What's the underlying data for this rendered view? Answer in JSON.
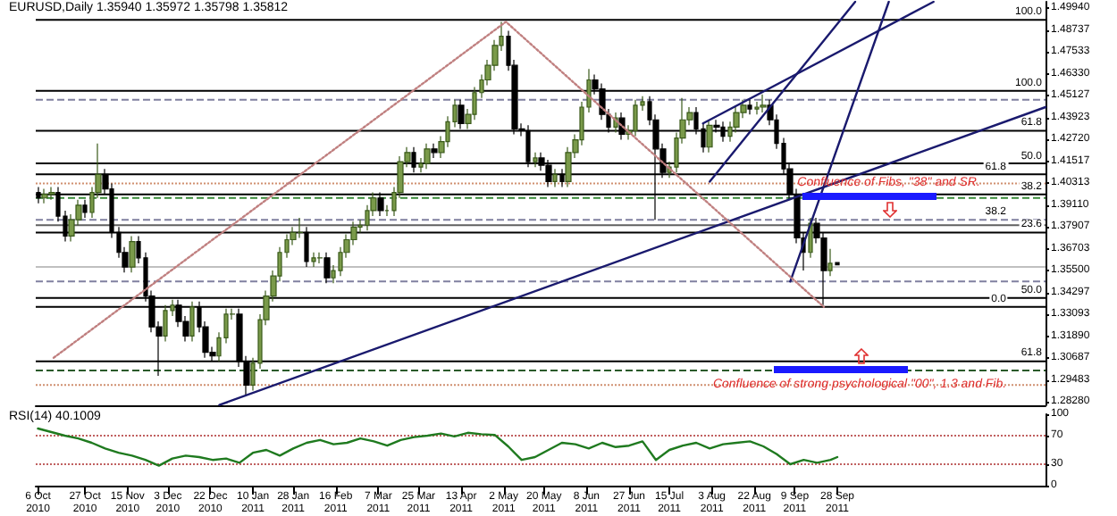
{
  "chart_data": [
    {
      "type": "candlestick",
      "title": "EURUSD,Daily 1.35940 1.35972 1.35798 1.35812",
      "x": [
        "2010-10-06",
        "2010-10-09",
        "2010-10-12",
        "2010-10-15",
        "2010-10-18",
        "2010-10-21",
        "2010-10-24",
        "2010-10-27",
        "2010-10-30",
        "2010-11-02",
        "2010-11-05",
        "2010-11-08",
        "2010-11-11",
        "2010-11-14",
        "2010-11-17",
        "2010-11-20",
        "2010-11-23",
        "2010-11-26",
        "2010-11-29",
        "2010-12-02",
        "2010-12-05",
        "2010-12-08",
        "2010-12-11",
        "2010-12-14",
        "2010-12-17",
        "2010-12-20",
        "2010-12-23",
        "2010-12-26",
        "2010-12-29",
        "2011-01-01",
        "2011-01-04",
        "2011-01-07",
        "2011-01-10",
        "2011-01-13",
        "2011-01-16",
        "2011-01-19",
        "2011-01-22",
        "2011-01-25",
        "2011-01-28",
        "2011-01-31",
        "2011-02-03",
        "2011-02-06",
        "2011-02-09",
        "2011-02-12",
        "2011-02-15",
        "2011-02-18",
        "2011-02-21",
        "2011-02-24",
        "2011-02-27",
        "2011-03-02",
        "2011-03-05",
        "2011-03-08",
        "2011-03-11",
        "2011-03-14",
        "2011-03-17",
        "2011-03-20",
        "2011-03-23",
        "2011-03-26",
        "2011-03-29",
        "2011-04-01",
        "2011-04-04",
        "2011-04-07",
        "2011-04-10",
        "2011-04-13",
        "2011-04-16",
        "2011-04-19",
        "2011-04-22",
        "2011-04-25",
        "2011-04-28",
        "2011-05-01",
        "2011-05-04",
        "2011-05-07",
        "2011-05-10",
        "2011-05-13",
        "2011-05-16",
        "2011-05-19",
        "2011-05-22",
        "2011-05-25",
        "2011-05-28",
        "2011-05-31",
        "2011-06-03",
        "2011-06-06",
        "2011-06-09",
        "2011-06-12",
        "2011-06-15",
        "2011-06-18",
        "2011-06-21",
        "2011-06-24",
        "2011-06-27",
        "2011-06-30",
        "2011-07-03",
        "2011-07-06",
        "2011-07-09",
        "2011-07-12",
        "2011-07-15",
        "2011-07-18",
        "2011-07-21",
        "2011-07-24",
        "2011-07-27",
        "2011-07-30",
        "2011-08-02",
        "2011-08-05",
        "2011-08-08",
        "2011-08-11",
        "2011-08-14",
        "2011-08-17",
        "2011-08-20",
        "2011-08-23",
        "2011-08-26",
        "2011-08-29",
        "2011-09-01",
        "2011-09-04",
        "2011-09-07",
        "2011-09-10",
        "2011-09-13",
        "2011-09-16",
        "2011-09-19",
        "2011-09-22",
        "2011-09-25",
        "2011-09-28"
      ],
      "ohlc": [
        [
          1.398,
          1.401,
          1.392,
          1.395
        ],
        [
          1.395,
          1.4,
          1.392,
          1.397
        ],
        [
          1.397,
          1.401,
          1.394,
          1.398
        ],
        [
          1.398,
          1.401,
          1.382,
          1.385
        ],
        [
          1.385,
          1.388,
          1.371,
          1.374
        ],
        [
          1.374,
          1.386,
          1.371,
          1.383
        ],
        [
          1.383,
          1.394,
          1.38,
          1.391
        ],
        [
          1.391,
          1.394,
          1.384,
          1.387
        ],
        [
          1.387,
          1.401,
          1.384,
          1.398
        ],
        [
          1.398,
          1.425,
          1.395,
          1.408
        ],
        [
          1.408,
          1.411,
          1.397,
          1.4
        ],
        [
          1.4,
          1.403,
          1.373,
          1.376
        ],
        [
          1.376,
          1.379,
          1.362,
          1.365
        ],
        [
          1.365,
          1.368,
          1.354,
          1.357
        ],
        [
          1.357,
          1.374,
          1.354,
          1.371
        ],
        [
          1.371,
          1.374,
          1.359,
          1.362
        ],
        [
          1.362,
          1.365,
          1.338,
          1.341
        ],
        [
          1.341,
          1.344,
          1.321,
          1.324
        ],
        [
          1.324,
          1.327,
          1.297,
          1.319
        ],
        [
          1.319,
          1.336,
          1.316,
          1.333
        ],
        [
          1.333,
          1.339,
          1.33,
          1.336
        ],
        [
          1.336,
          1.339,
          1.324,
          1.327
        ],
        [
          1.327,
          1.33,
          1.316,
          1.319
        ],
        [
          1.319,
          1.338,
          1.316,
          1.335
        ],
        [
          1.335,
          1.338,
          1.321,
          1.324
        ],
        [
          1.324,
          1.327,
          1.307,
          1.31
        ],
        [
          1.31,
          1.313,
          1.305,
          1.308
        ],
        [
          1.308,
          1.321,
          1.305,
          1.318
        ],
        [
          1.318,
          1.334,
          1.315,
          1.331
        ],
        [
          1.331,
          1.334,
          1.328,
          1.331
        ],
        [
          1.331,
          1.334,
          1.302,
          1.305
        ],
        [
          1.305,
          1.308,
          1.286,
          1.292
        ],
        [
          1.292,
          1.307,
          1.289,
          1.304
        ],
        [
          1.304,
          1.331,
          1.301,
          1.328
        ],
        [
          1.328,
          1.344,
          1.325,
          1.341
        ],
        [
          1.341,
          1.355,
          1.338,
          1.352
        ],
        [
          1.352,
          1.368,
          1.349,
          1.365
        ],
        [
          1.365,
          1.375,
          1.362,
          1.372
        ],
        [
          1.372,
          1.379,
          1.369,
          1.376
        ],
        [
          1.376,
          1.384,
          1.373,
          1.376
        ],
        [
          1.376,
          1.379,
          1.357,
          1.36
        ],
        [
          1.36,
          1.365,
          1.357,
          1.362
        ],
        [
          1.362,
          1.365,
          1.359,
          1.362
        ],
        [
          1.362,
          1.365,
          1.348,
          1.351
        ],
        [
          1.351,
          1.358,
          1.348,
          1.355
        ],
        [
          1.355,
          1.368,
          1.352,
          1.365
        ],
        [
          1.365,
          1.375,
          1.362,
          1.372
        ],
        [
          1.372,
          1.382,
          1.369,
          1.379
        ],
        [
          1.379,
          1.383,
          1.376,
          1.38
        ],
        [
          1.38,
          1.391,
          1.377,
          1.388
        ],
        [
          1.388,
          1.398,
          1.385,
          1.395
        ],
        [
          1.395,
          1.398,
          1.385,
          1.388
        ],
        [
          1.388,
          1.391,
          1.385,
          1.388
        ],
        [
          1.388,
          1.401,
          1.385,
          1.398
        ],
        [
          1.398,
          1.418,
          1.395,
          1.415
        ],
        [
          1.415,
          1.423,
          1.412,
          1.42
        ],
        [
          1.42,
          1.423,
          1.409,
          1.412
        ],
        [
          1.412,
          1.417,
          1.409,
          1.414
        ],
        [
          1.414,
          1.425,
          1.411,
          1.422
        ],
        [
          1.422,
          1.425,
          1.417,
          1.42
        ],
        [
          1.42,
          1.429,
          1.417,
          1.426
        ],
        [
          1.426,
          1.44,
          1.423,
          1.437
        ],
        [
          1.437,
          1.449,
          1.434,
          1.446
        ],
        [
          1.446,
          1.449,
          1.433,
          1.436
        ],
        [
          1.436,
          1.444,
          1.433,
          1.441
        ],
        [
          1.441,
          1.456,
          1.438,
          1.453
        ],
        [
          1.453,
          1.463,
          1.45,
          1.46
        ],
        [
          1.46,
          1.471,
          1.457,
          1.468
        ],
        [
          1.468,
          1.482,
          1.465,
          1.479
        ],
        [
          1.479,
          1.492,
          1.476,
          1.484
        ],
        [
          1.484,
          1.487,
          1.465,
          1.468
        ],
        [
          1.468,
          1.471,
          1.43,
          1.433
        ],
        [
          1.433,
          1.436,
          1.429,
          1.432
        ],
        [
          1.432,
          1.435,
          1.412,
          1.415
        ],
        [
          1.415,
          1.42,
          1.412,
          1.417
        ],
        [
          1.417,
          1.42,
          1.41,
          1.413
        ],
        [
          1.413,
          1.416,
          1.401,
          1.404
        ],
        [
          1.404,
          1.411,
          1.401,
          1.408
        ],
        [
          1.408,
          1.411,
          1.401,
          1.404
        ],
        [
          1.404,
          1.423,
          1.401,
          1.42
        ],
        [
          1.42,
          1.43,
          1.417,
          1.427
        ],
        [
          1.427,
          1.448,
          1.424,
          1.445
        ],
        [
          1.445,
          1.466,
          1.442,
          1.46
        ],
        [
          1.46,
          1.463,
          1.452,
          1.455
        ],
        [
          1.455,
          1.458,
          1.438,
          1.441
        ],
        [
          1.441,
          1.444,
          1.431,
          1.434
        ],
        [
          1.434,
          1.442,
          1.431,
          1.439
        ],
        [
          1.439,
          1.442,
          1.427,
          1.43
        ],
        [
          1.43,
          1.435,
          1.427,
          1.432
        ],
        [
          1.432,
          1.449,
          1.429,
          1.446
        ],
        [
          1.446,
          1.451,
          1.443,
          1.448
        ],
        [
          1.448,
          1.451,
          1.435,
          1.438
        ],
        [
          1.438,
          1.441,
          1.383,
          1.422
        ],
        [
          1.422,
          1.425,
          1.406,
          1.409
        ],
        [
          1.409,
          1.415,
          1.406,
          1.412
        ],
        [
          1.412,
          1.431,
          1.409,
          1.428
        ],
        [
          1.428,
          1.45,
          1.425,
          1.438
        ],
        [
          1.438,
          1.445,
          1.435,
          1.442
        ],
        [
          1.442,
          1.445,
          1.43,
          1.433
        ],
        [
          1.433,
          1.436,
          1.42,
          1.423
        ],
        [
          1.423,
          1.438,
          1.42,
          1.435
        ],
        [
          1.435,
          1.438,
          1.431,
          1.434
        ],
        [
          1.434,
          1.437,
          1.426,
          1.429
        ],
        [
          1.429,
          1.437,
          1.426,
          1.434
        ],
        [
          1.434,
          1.445,
          1.431,
          1.442
        ],
        [
          1.442,
          1.449,
          1.439,
          1.446
        ],
        [
          1.446,
          1.449,
          1.441,
          1.444
        ],
        [
          1.444,
          1.448,
          1.441,
          1.445
        ],
        [
          1.445,
          1.452,
          1.442,
          1.446
        ],
        [
          1.446,
          1.449,
          1.435,
          1.438
        ],
        [
          1.438,
          1.441,
          1.422,
          1.425
        ],
        [
          1.425,
          1.428,
          1.408,
          1.411
        ],
        [
          1.411,
          1.414,
          1.394,
          1.397
        ],
        [
          1.397,
          1.4,
          1.37,
          1.373
        ],
        [
          1.373,
          1.376,
          1.355,
          1.365
        ],
        [
          1.365,
          1.384,
          1.362,
          1.381
        ],
        [
          1.381,
          1.384,
          1.37,
          1.373
        ],
        [
          1.373,
          1.376,
          1.336,
          1.355
        ],
        [
          1.355,
          1.367,
          1.352,
          1.359
        ],
        [
          1.3594,
          1.35972,
          1.35798,
          1.35812
        ]
      ],
      "series": [
        {
          "type": "line",
          "x": [
            "2010-12-26",
            "2011-12-30"
          ],
          "values": [
            1.281,
            1.445
          ],
          "color": "#1a1a6e",
          "line_style": "solid"
        },
        {
          "type": "line",
          "x": [
            "2011-07-30",
            "2011-11-10"
          ],
          "values": [
            1.436,
            1.503
          ],
          "color": "#1a1a6e",
          "line_style": "solid"
        },
        {
          "type": "line",
          "x": [
            "2011-08-02",
            "2011-10-06"
          ],
          "values": [
            1.404,
            1.503
          ],
          "color": "#1a1a6e",
          "line_style": "solid"
        },
        {
          "type": "line",
          "x": [
            "2011-09-07",
            "2011-10-21"
          ],
          "values": [
            1.349,
            1.503
          ],
          "color": "#1a1a6e",
          "line_style": "solid"
        },
        {
          "type": "line",
          "x": [
            "2010-10-13",
            "2011-05-03",
            "2011-09-22"
          ],
          "values": [
            1.307,
            1.492,
            1.335
          ],
          "color": "#c08080",
          "line_style": "dotted"
        }
      ],
      "xlim": [
        "2010-10-05",
        "2011-12-30"
      ],
      "ylim": [
        1.281,
        1.503
      ],
      "yticks": [
        {
          "value": 1.2828,
          "label": "1.28280"
        },
        {
          "value": 1.29483,
          "label": "1.29483"
        },
        {
          "value": 1.30687,
          "label": "1.30687"
        },
        {
          "value": 1.3189,
          "label": "1.31890"
        },
        {
          "value": 1.33093,
          "label": "1.33093"
        },
        {
          "value": 1.34297,
          "label": "1.34297"
        },
        {
          "value": 1.355,
          "label": "1.35500"
        },
        {
          "value": 1.36703,
          "label": "1.36703"
        },
        {
          "value": 1.37907,
          "label": "1.37907"
        },
        {
          "value": 1.3911,
          "label": "1.39110"
        },
        {
          "value": 1.40313,
          "label": "1.40313"
        },
        {
          "value": 1.41517,
          "label": "1.41517"
        },
        {
          "value": 1.4272,
          "label": "1.42720"
        },
        {
          "value": 1.43923,
          "label": "1.43923"
        },
        {
          "value": 1.45127,
          "label": "1.45127"
        },
        {
          "value": 1.4633,
          "label": "1.46330"
        },
        {
          "value": 1.47533,
          "label": "1.47533"
        },
        {
          "value": 1.48737,
          "label": "1.48737"
        },
        {
          "value": 1.4994,
          "label": "1.49940"
        }
      ],
      "tick_labels": "y",
      "ref_lines": [
        {
          "axis": "y",
          "value": 1.493,
          "color": "#000000",
          "line_style": "solid"
        },
        {
          "axis": "y",
          "value": 1.454,
          "color": "#000000",
          "line_style": "solid"
        },
        {
          "axis": "y",
          "value": 1.449,
          "color": "#8080a0",
          "line_style": "dashed"
        },
        {
          "axis": "y",
          "value": 1.432,
          "color": "#000000",
          "line_style": "solid"
        },
        {
          "axis": "y",
          "value": 1.414,
          "color": "#000000",
          "line_style": "solid"
        },
        {
          "axis": "y",
          "value": 1.408,
          "color": "#000000",
          "line_style": "solid"
        },
        {
          "axis": "y",
          "value": 1.403,
          "color": "#d09070",
          "line_style": "dotted"
        },
        {
          "axis": "y",
          "value": 1.397,
          "color": "#000000",
          "line_style": "solid"
        },
        {
          "axis": "y",
          "value": 1.395,
          "color": "#3a8a3a",
          "line_style": "dashed"
        },
        {
          "axis": "y",
          "value": 1.383,
          "color": "#8080a0",
          "line_style": "dashed"
        },
        {
          "axis": "y",
          "value": 1.38,
          "color": "#606060",
          "line_style": "solid"
        },
        {
          "axis": "y",
          "value": 1.376,
          "color": "#000000",
          "line_style": "solid"
        },
        {
          "axis": "y",
          "value": 1.357,
          "color": "#c0c0c0",
          "line_style": "solid"
        },
        {
          "axis": "y",
          "value": 1.349,
          "color": "#8080a0",
          "line_style": "dashed"
        },
        {
          "axis": "y",
          "value": 1.34,
          "color": "#000000",
          "line_style": "solid"
        },
        {
          "axis": "y",
          "value": 1.335,
          "color": "#000000",
          "line_style": "solid"
        },
        {
          "axis": "y",
          "value": 1.305,
          "color": "#000000",
          "line_style": "solid"
        },
        {
          "axis": "y",
          "value": 1.3,
          "color": "#2a5a2a",
          "line_style": "dashed"
        },
        {
          "axis": "y",
          "value": 1.292,
          "color": "#d09070",
          "line_style": "dotted"
        }
      ],
      "annotations": [
        {
          "text": "Confluence of Fibs, \"38\" and SR.",
          "x": "2011-10-21",
          "y": 1.403
        },
        {
          "text": "Confluence of strong psychological \"00\", 1.3 and Fib.",
          "x": "2011-10-08",
          "y": 1.292
        },
        {
          "text": "100.0",
          "x": "2011-12-30",
          "y": 1.493
        },
        {
          "text": "100.0",
          "x": "2011-12-30",
          "y": 1.454
        },
        {
          "text": "61.8",
          "x": "2011-12-30",
          "y": 1.432
        },
        {
          "text": "50.0",
          "x": "2011-12-30",
          "y": 1.414
        },
        {
          "text": "61.8",
          "x": "2011-12-14",
          "y": 1.408
        },
        {
          "text": "38.2",
          "x": "2011-12-30",
          "y": 1.397
        },
        {
          "text": "38.2",
          "x": "2011-12-14",
          "y": 1.383
        },
        {
          "text": "23.6",
          "x": "2011-12-30",
          "y": 1.376
        },
        {
          "text": "50.0",
          "x": "2011-12-30",
          "y": 1.34
        },
        {
          "text": "0.0",
          "x": "2011-12-14",
          "y": 1.335
        },
        {
          "text": "61.8",
          "x": "2011-12-30",
          "y": 1.305
        }
      ]
    },
    {
      "type": "line",
      "title": "RSI(14) 40.1009",
      "x": [
        "2010-10-06",
        "2010-10-12",
        "2010-10-18",
        "2010-10-24",
        "2010-10-30",
        "2010-11-05",
        "2010-11-11",
        "2010-11-17",
        "2010-11-23",
        "2010-11-29",
        "2010-12-05",
        "2010-12-11",
        "2010-12-17",
        "2010-12-23",
        "2010-12-29",
        "2011-01-04",
        "2011-01-10",
        "2011-01-16",
        "2011-01-22",
        "2011-01-28",
        "2011-02-03",
        "2011-02-09",
        "2011-02-15",
        "2011-02-21",
        "2011-02-27",
        "2011-03-05",
        "2011-03-11",
        "2011-03-17",
        "2011-03-23",
        "2011-03-29",
        "2011-04-04",
        "2011-04-10",
        "2011-04-16",
        "2011-04-22",
        "2011-04-28",
        "2011-05-04",
        "2011-05-10",
        "2011-05-16",
        "2011-05-22",
        "2011-05-28",
        "2011-06-03",
        "2011-06-09",
        "2011-06-15",
        "2011-06-21",
        "2011-06-27",
        "2011-07-03",
        "2011-07-09",
        "2011-07-15",
        "2011-07-21",
        "2011-07-27",
        "2011-08-02",
        "2011-08-08",
        "2011-08-14",
        "2011-08-20",
        "2011-08-26",
        "2011-09-01",
        "2011-09-07",
        "2011-09-13",
        "2011-09-19",
        "2011-09-25",
        "2011-09-28"
      ],
      "values": [
        80,
        75,
        70,
        66,
        60,
        52,
        46,
        42,
        36,
        28,
        38,
        42,
        40,
        36,
        38,
        32,
        46,
        50,
        42,
        52,
        60,
        64,
        58,
        60,
        66,
        62,
        56,
        64,
        68,
        70,
        73,
        69,
        74,
        72,
        71,
        55,
        36,
        40,
        50,
        60,
        58,
        52,
        60,
        54,
        56,
        62,
        36,
        50,
        56,
        60,
        52,
        58,
        60,
        62,
        55,
        44,
        30,
        36,
        32,
        36,
        40
      ],
      "color": "#1f7a1f",
      "xlim": [
        "2010-10-05",
        "2011-12-30"
      ],
      "ylim": [
        0,
        100
      ],
      "yticks": [
        0,
        30,
        70,
        100
      ],
      "xticks": [
        {
          "value": "2010-10-06",
          "label": "6 Oct 2010"
        },
        {
          "value": "2010-10-27",
          "label": "27 Oct 2010"
        },
        {
          "value": "2010-11-15",
          "label": "15 Nov 2010"
        },
        {
          "value": "2010-12-03",
          "label": "3 Dec 2010"
        },
        {
          "value": "2010-12-22",
          "label": "22 Dec 2010"
        },
        {
          "value": "2011-01-10",
          "label": "10 Jan 2011"
        },
        {
          "value": "2011-01-28",
          "label": "28 Jan 2011"
        },
        {
          "value": "2011-02-16",
          "label": "16 Feb 2011"
        },
        {
          "value": "2011-03-07",
          "label": "7 Mar 2011"
        },
        {
          "value": "2011-03-25",
          "label": "25 Mar 2011"
        },
        {
          "value": "2011-04-13",
          "label": "13 Apr 2011"
        },
        {
          "value": "2011-05-02",
          "label": "2 May 2011"
        },
        {
          "value": "2011-05-20",
          "label": "20 May 2011"
        },
        {
          "value": "2011-06-08",
          "label": "8 Jun 2011"
        },
        {
          "value": "2011-06-27",
          "label": "27 Jun 2011"
        },
        {
          "value": "2011-07-15",
          "label": "15 Jul 2011"
        },
        {
          "value": "2011-08-03",
          "label": "3 Aug 2011"
        },
        {
          "value": "2011-08-22",
          "label": "22 Aug 2011"
        },
        {
          "value": "2011-09-09",
          "label": "9 Sep 2011"
        },
        {
          "value": "2011-09-28",
          "label": "28 Sep 2011"
        }
      ],
      "ref_lines": [
        {
          "axis": "y",
          "value": 70,
          "color": "#c06060",
          "line_style": "dotted"
        },
        {
          "axis": "y",
          "value": 30,
          "color": "#c06060",
          "line_style": "dotted"
        }
      ]
    }
  ]
}
